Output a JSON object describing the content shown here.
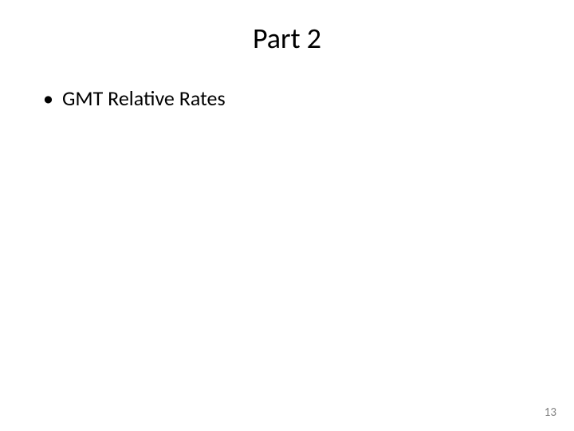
{
  "slide": {
    "title": "Part 2",
    "bullets": [
      "GMT Relative Rates"
    ],
    "page_number": "13"
  },
  "styling": {
    "background_color": "#ffffff",
    "title_fontsize": 36,
    "title_color": "#000000",
    "bullet_fontsize": 26,
    "bullet_color": "#000000",
    "page_number_fontsize": 15,
    "page_number_color": "#808080",
    "font_family": "Calibri"
  }
}
